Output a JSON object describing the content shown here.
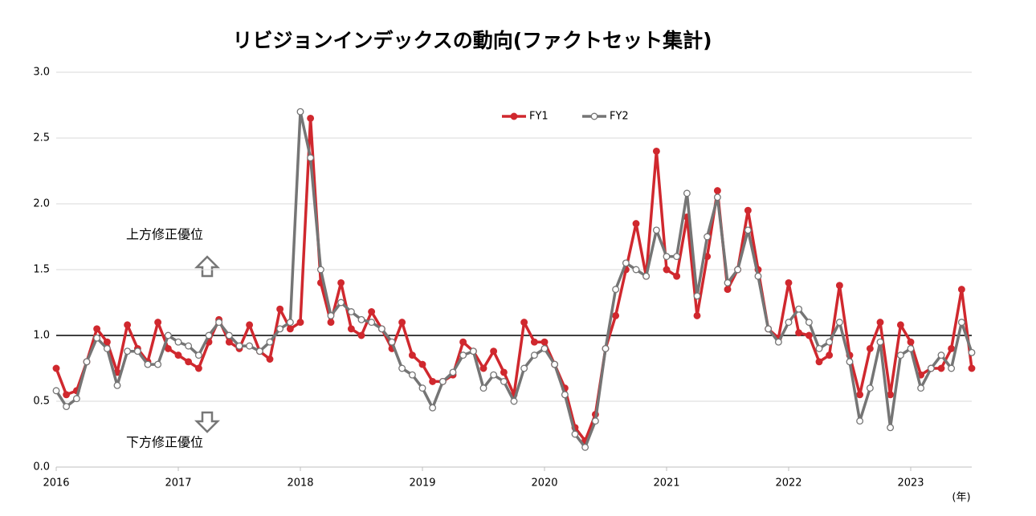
{
  "chart_data": {
    "type": "line",
    "title": "リビジョンインデックスの動向(ファクトセット集計)",
    "x": [
      2016,
      2016.083,
      2016.167,
      2016.25,
      2016.333,
      2016.417,
      2016.5,
      2016.583,
      2016.667,
      2016.75,
      2016.833,
      2016.917,
      2017,
      2017.083,
      2017.167,
      2017.25,
      2017.333,
      2017.417,
      2017.5,
      2017.583,
      2017.667,
      2017.75,
      2017.833,
      2017.917,
      2018,
      2018.083,
      2018.167,
      2018.25,
      2018.333,
      2018.417,
      2018.5,
      2018.583,
      2018.667,
      2018.75,
      2018.833,
      2018.917,
      2019,
      2019.083,
      2019.167,
      2019.25,
      2019.333,
      2019.417,
      2019.5,
      2019.583,
      2019.667,
      2019.75,
      2019.833,
      2019.917,
      2020,
      2020.083,
      2020.167,
      2020.25,
      2020.333,
      2020.417,
      2020.5,
      2020.583,
      2020.667,
      2020.75,
      2020.833,
      2020.917,
      2021,
      2021.083,
      2021.167,
      2021.25,
      2021.333,
      2021.417,
      2021.5,
      2021.583,
      2021.667,
      2021.75,
      2021.833,
      2021.917,
      2022,
      2022.083,
      2022.167,
      2022.25,
      2022.333,
      2022.417,
      2022.5,
      2022.583,
      2022.667,
      2022.75,
      2022.833,
      2022.917,
      2023,
      2023.083,
      2023.167,
      2023.25,
      2023.333,
      2023.417,
      2023.5
    ],
    "series": [
      {
        "name": "FY1",
        "color": "#d0282e",
        "values": [
          0.75,
          0.55,
          0.58,
          0.8,
          1.05,
          0.95,
          0.72,
          1.08,
          0.9,
          0.8,
          1.1,
          0.9,
          0.85,
          0.8,
          0.75,
          0.95,
          1.12,
          0.95,
          0.9,
          1.08,
          0.88,
          0.82,
          1.2,
          1.05,
          1.1,
          2.65,
          1.4,
          1.1,
          1.4,
          1.05,
          1.0,
          1.18,
          1.05,
          0.9,
          1.1,
          0.85,
          0.78,
          0.65,
          0.65,
          0.7,
          0.95,
          0.88,
          0.75,
          0.88,
          0.72,
          0.55,
          1.1,
          0.95,
          0.95,
          0.78,
          0.6,
          0.3,
          0.2,
          0.4,
          0.9,
          1.15,
          1.5,
          1.85,
          1.45,
          2.4,
          1.5,
          1.45,
          1.9,
          1.15,
          1.6,
          2.1,
          1.35,
          1.5,
          1.95,
          1.5,
          1.05,
          0.98,
          1.4,
          1.02,
          1.0,
          0.8,
          0.85,
          1.38,
          0.85,
          0.55,
          0.9,
          1.1,
          0.55,
          1.08,
          0.95,
          0.7,
          0.75,
          0.75,
          0.9,
          1.35,
          0.75
        ]
      },
      {
        "name": "FY2",
        "color": "#757575",
        "values": [
          0.58,
          0.46,
          0.52,
          0.8,
          0.98,
          0.9,
          0.62,
          0.88,
          0.88,
          0.78,
          0.78,
          1.0,
          0.95,
          0.92,
          0.85,
          1.0,
          1.1,
          1.0,
          0.92,
          0.92,
          0.88,
          0.95,
          1.05,
          1.1,
          2.7,
          2.35,
          1.5,
          1.15,
          1.25,
          1.18,
          1.12,
          1.1,
          1.05,
          0.95,
          0.75,
          0.7,
          0.6,
          0.45,
          0.65,
          0.72,
          0.85,
          0.88,
          0.6,
          0.7,
          0.65,
          0.5,
          0.75,
          0.85,
          0.9,
          0.78,
          0.55,
          0.25,
          0.15,
          0.35,
          0.9,
          1.35,
          1.55,
          1.5,
          1.45,
          1.8,
          1.6,
          1.6,
          2.08,
          1.3,
          1.75,
          2.05,
          1.4,
          1.5,
          1.8,
          1.45,
          1.05,
          0.95,
          1.1,
          1.2,
          1.1,
          0.9,
          0.95,
          1.1,
          0.8,
          0.35,
          0.6,
          0.95,
          0.3,
          0.85,
          0.9,
          0.6,
          0.75,
          0.85,
          0.75,
          1.1,
          0.87
        ]
      }
    ],
    "xlim": [
      2016,
      2023.5
    ],
    "xticks": [
      2016,
      2017,
      2018,
      2019,
      2020,
      2021,
      2022,
      2023
    ],
    "ylim": [
      0,
      3
    ],
    "yticks": [
      {
        "value": 0,
        "label": "0.0"
      },
      0.5,
      {
        "value": 1,
        "label": "1.0"
      },
      1.5,
      {
        "value": 2,
        "label": "2.0"
      },
      2.5,
      {
        "value": 3,
        "label": "3.0"
      }
    ],
    "reference_line": 1,
    "grid": true,
    "legend": "top",
    "x_unit": "(年)",
    "annotations": [
      "上方修正優位",
      "下方修正優位"
    ]
  }
}
